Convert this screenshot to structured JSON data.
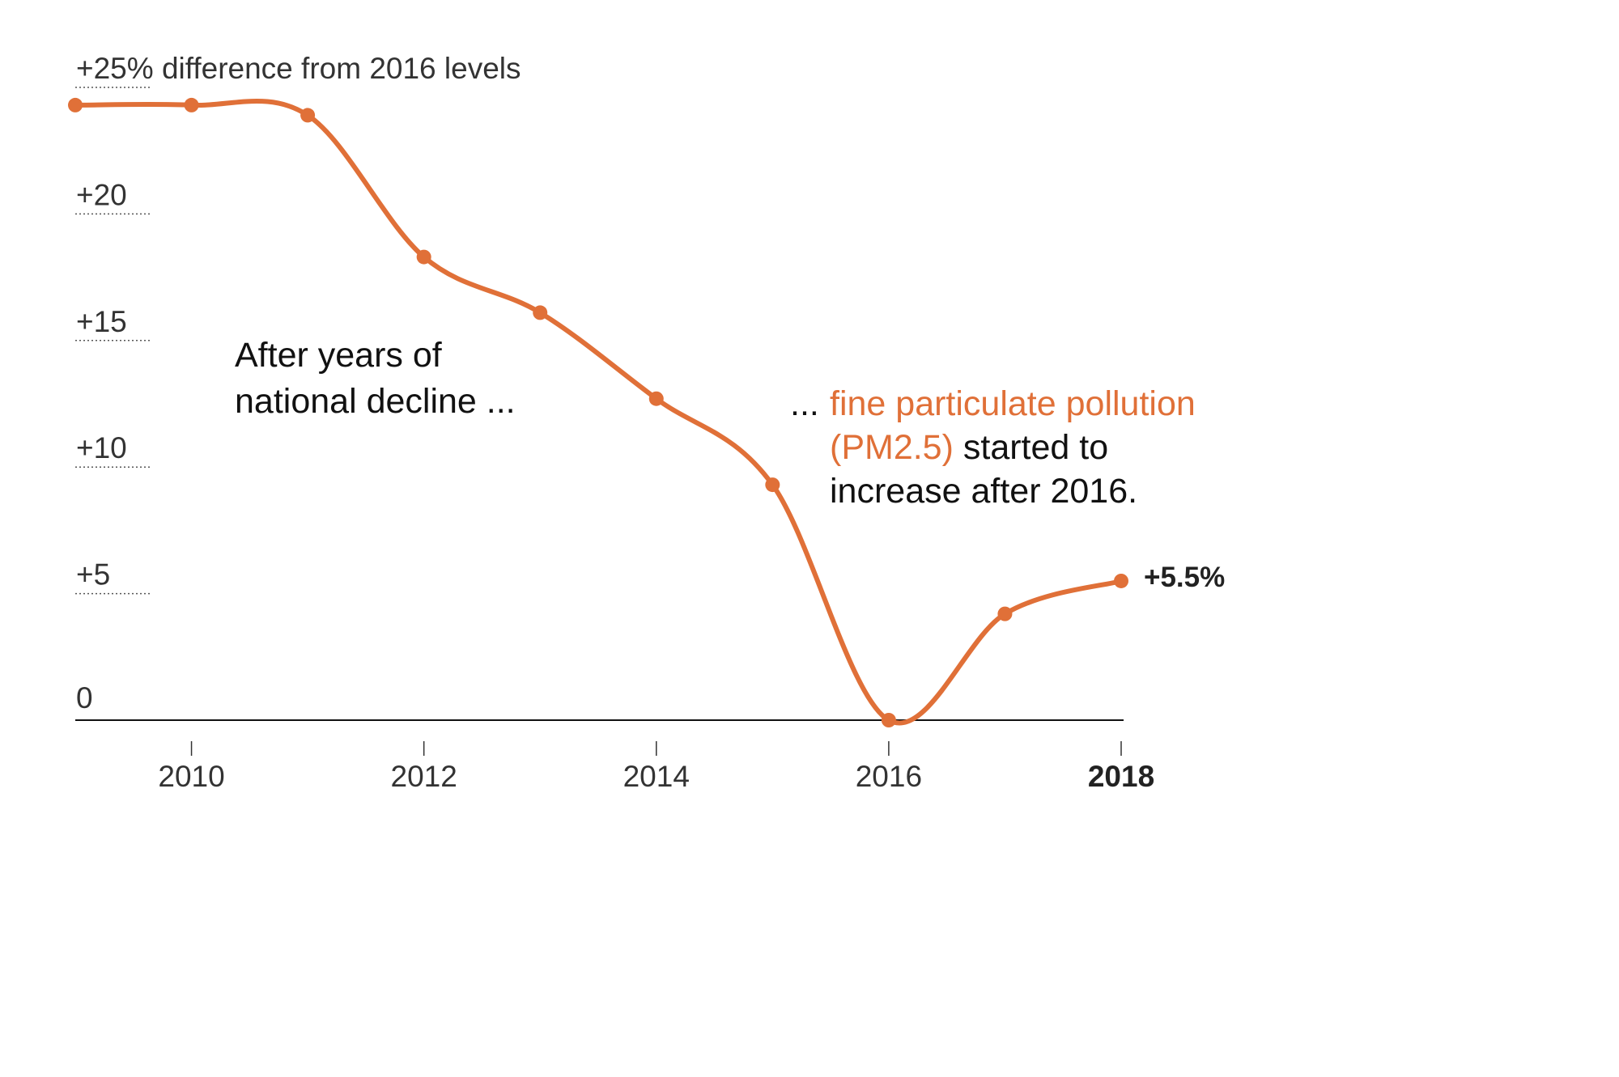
{
  "chart_data": {
    "type": "line",
    "x": [
      2009,
      2010,
      2011,
      2012,
      2013,
      2014,
      2015,
      2016,
      2017,
      2018
    ],
    "series": [
      {
        "values": [
          24.3,
          24.3,
          23.9,
          18.3,
          16.1,
          12.7,
          9.3,
          0.0,
          4.2,
          5.5
        ],
        "color": "#e07038"
      }
    ],
    "ylim": [
      0,
      25
    ],
    "xlim": [
      2009,
      2018
    ],
    "y_ticks": [
      {
        "value": 0,
        "label": "0"
      },
      {
        "value": 5,
        "label": "+5"
      },
      {
        "value": 10,
        "label": "+10"
      },
      {
        "value": 15,
        "label": "+15"
      },
      {
        "value": 20,
        "label": "+20"
      },
      {
        "value": 25,
        "label": "+25% difference from 2016 levels"
      }
    ],
    "x_ticks": [
      {
        "value": 2010,
        "label": "2010",
        "bold": false
      },
      {
        "value": 2012,
        "label": "2012",
        "bold": false
      },
      {
        "value": 2014,
        "label": "2014",
        "bold": false
      },
      {
        "value": 2016,
        "label": "2016",
        "bold": false
      },
      {
        "value": 2018,
        "label": "2018",
        "bold": true
      }
    ],
    "end_label": "+5.5%",
    "annotations": {
      "left": [
        "After years of",
        "national decline ..."
      ],
      "right_prefix": "...",
      "right_highlight_1": "fine particulate pollution",
      "right_highlight_2": "(PM2.5)",
      "right_rest_2": " started to",
      "right_line_3": "increase after 2016."
    },
    "grid": false,
    "legend": "none"
  }
}
